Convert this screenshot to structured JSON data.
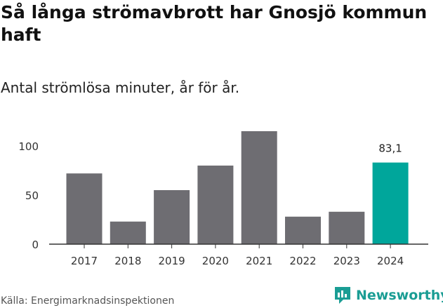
{
  "title": "Så långa strömavbrott har Gnosjö kommun haft",
  "subtitle": "Antal strömlösa minuter, år för år.",
  "source": "Källa: Energimarknadsinspektionen",
  "brand": "Newsworthy",
  "colors": {
    "bar": "#6e6d72",
    "highlight": "#00a69b",
    "axis": "#333333",
    "grid": "#cccccc",
    "brand": "#1a9d94"
  },
  "icons": {
    "brand_logo": "newsworthy-chart-icon"
  },
  "chart_data": {
    "type": "bar",
    "categories": [
      "2017",
      "2018",
      "2019",
      "2020",
      "2021",
      "2022",
      "2023",
      "2024"
    ],
    "values": [
      72,
      23,
      55,
      80,
      115,
      28,
      33,
      83.1
    ],
    "highlight_index": 7,
    "data_labels": [
      "",
      "",
      "",
      "",
      "",
      "",
      "",
      "83,1"
    ],
    "yticks": [
      0,
      50,
      100
    ],
    "ylim": [
      0,
      125
    ],
    "grid": false
  }
}
